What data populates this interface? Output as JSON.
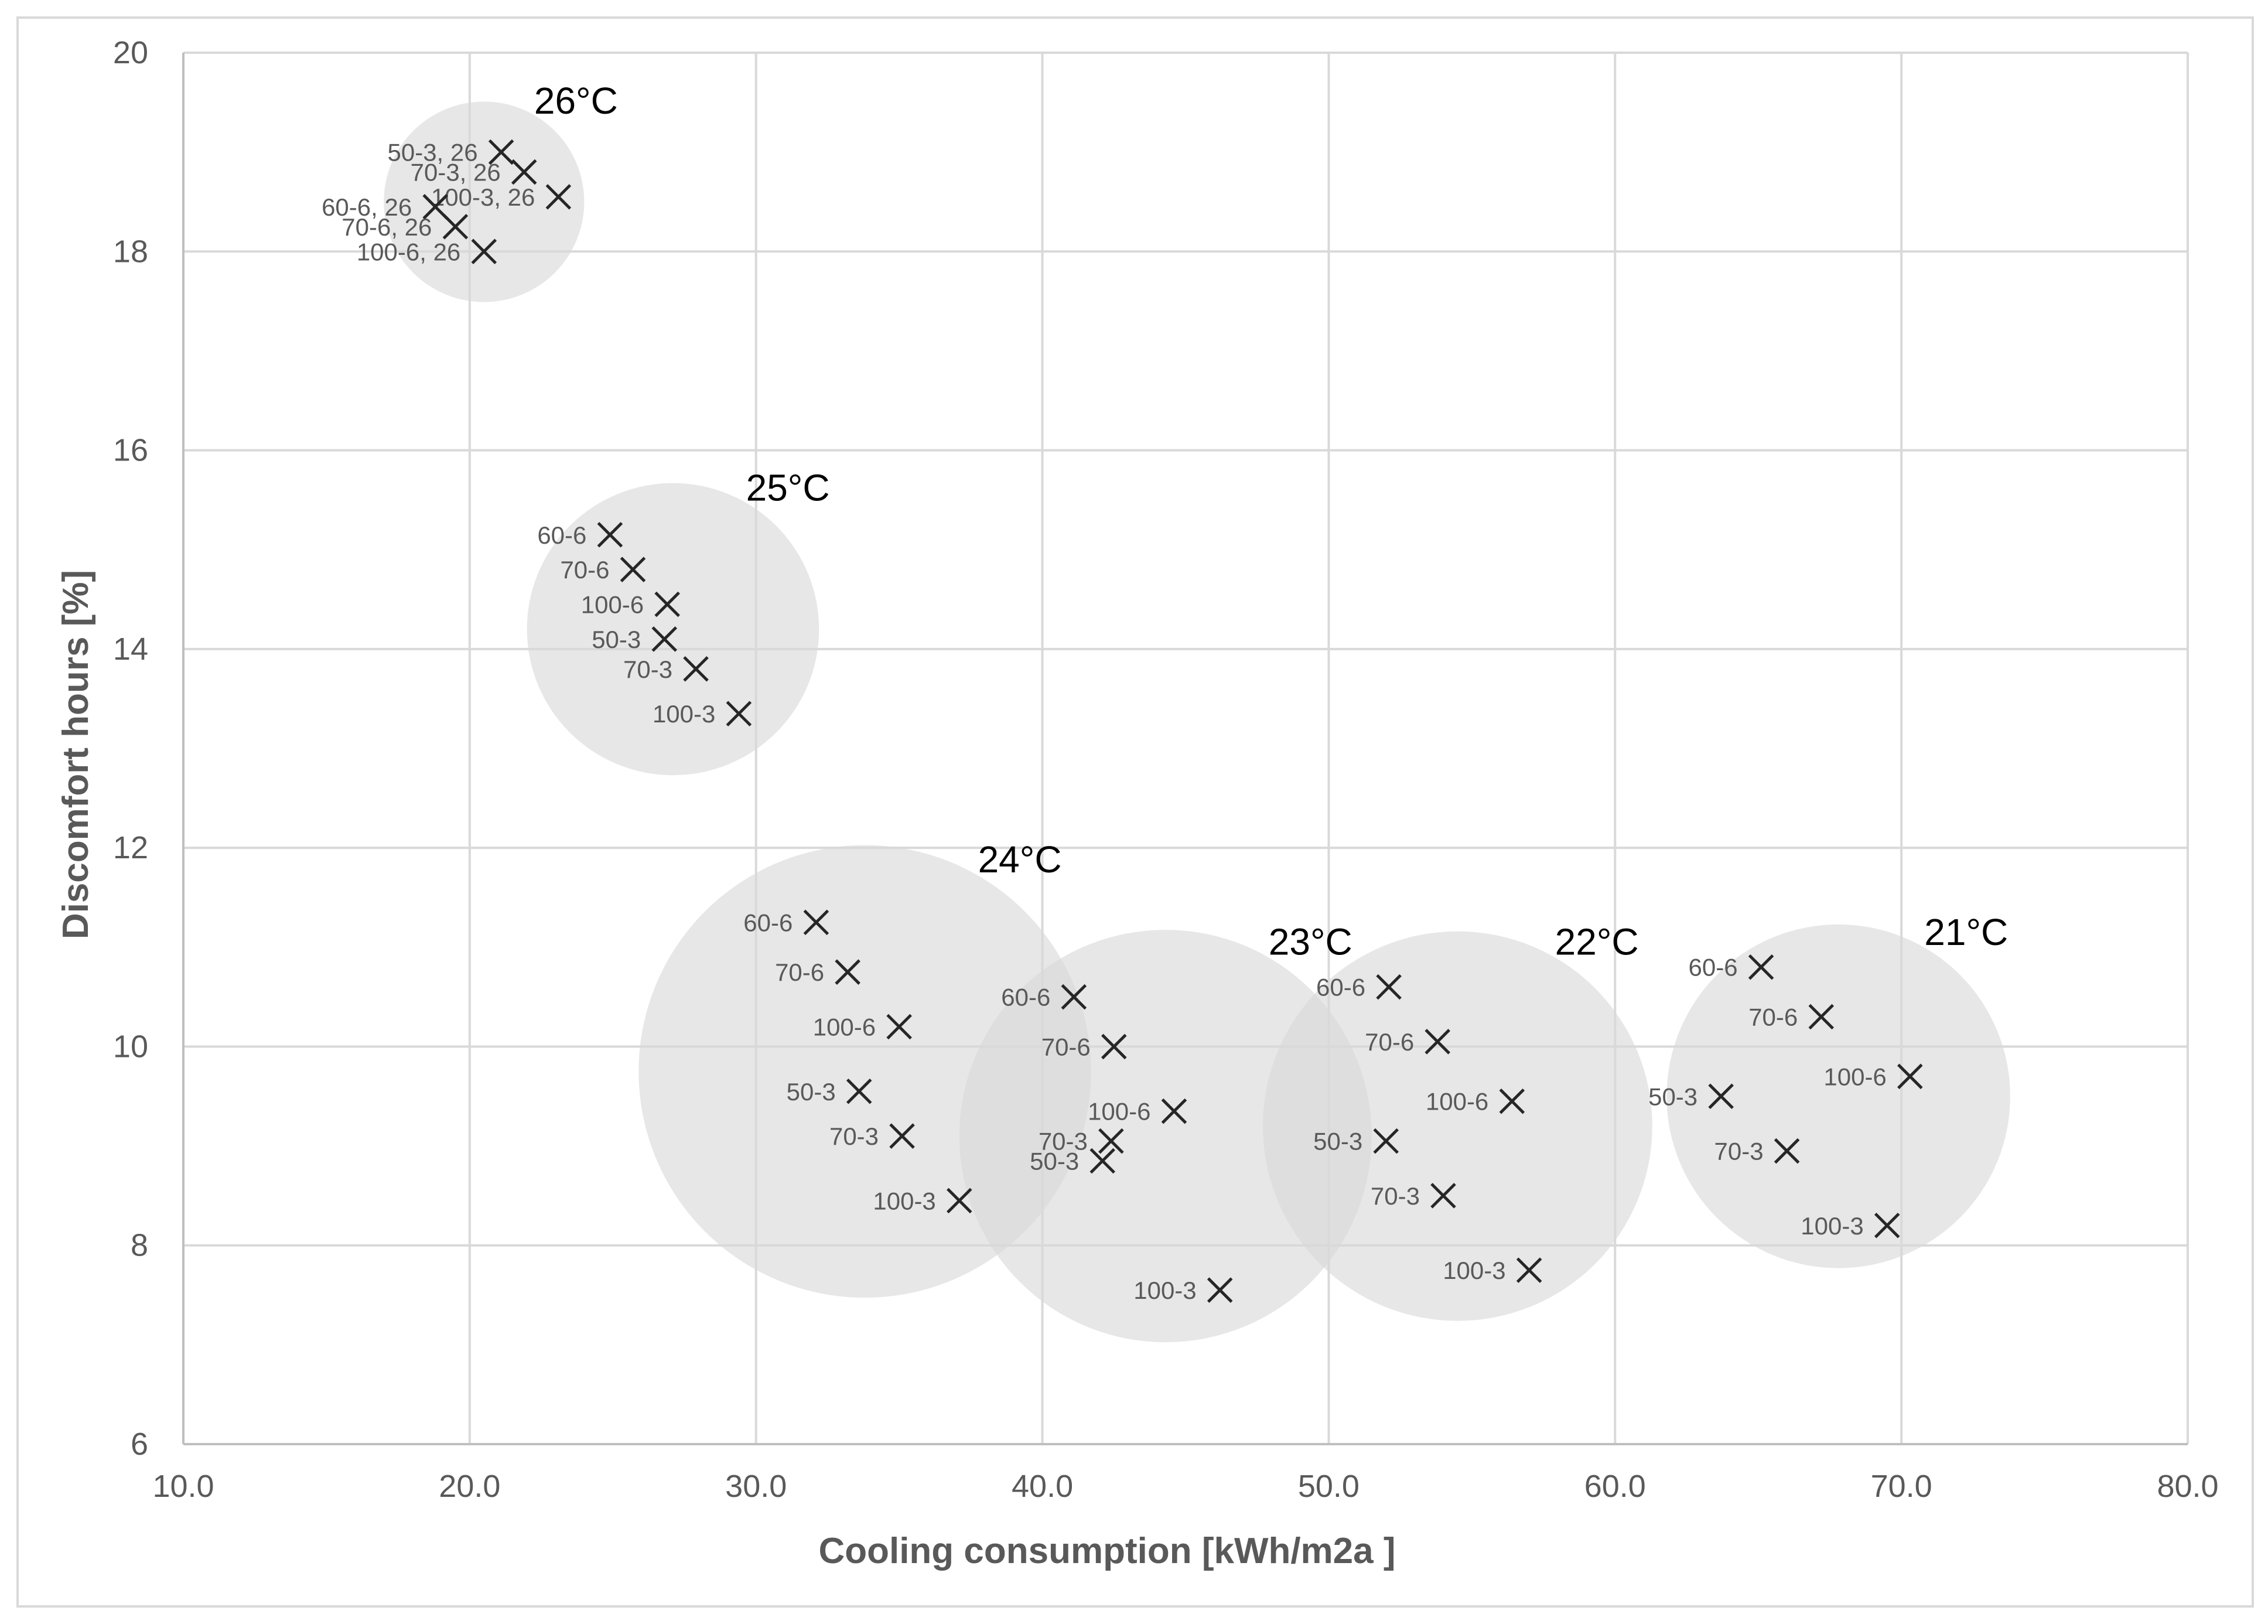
{
  "chart_data": {
    "type": "scatter",
    "title": "",
    "xlabel": "Cooling consumption [kWh/m2a ]",
    "ylabel": "Discomfort hours [%]",
    "xlim": [
      10.0,
      80.0
    ],
    "ylim": [
      6,
      20
    ],
    "x_ticks": [
      "10.0",
      "20.0",
      "30.0",
      "40.0",
      "50.0",
      "60.0",
      "70.0",
      "80.0"
    ],
    "y_ticks": [
      "6",
      "8",
      "10",
      "12",
      "14",
      "16",
      "18",
      "20"
    ],
    "grid": true,
    "marker": "x",
    "marker_color": "#262626",
    "bubble_color": "#d9d9d9",
    "groups": [
      {
        "label": "26°C",
        "bubble_center": [
          20.5,
          18.5
        ],
        "bubble_radius_x": 3.5,
        "points": [
          {
            "label": "50-3, 26",
            "x": 21.1,
            "y": 19.0
          },
          {
            "label": "70-3, 26",
            "x": 21.9,
            "y": 18.8
          },
          {
            "label": "100-3, 26",
            "x": 23.1,
            "y": 18.55
          },
          {
            "label": "60-6, 26",
            "x": 18.8,
            "y": 18.45
          },
          {
            "label": "70-6, 26",
            "x": 19.5,
            "y": 18.25
          },
          {
            "label": "100-6, 26",
            "x": 20.5,
            "y": 18.0
          }
        ]
      },
      {
        "label": "25°C",
        "bubble_center": [
          27.1,
          14.2
        ],
        "bubble_radius_x": 5.1,
        "points": [
          {
            "label": "60-6",
            "x": 24.9,
            "y": 15.15
          },
          {
            "label": "70-6",
            "x": 25.7,
            "y": 14.8
          },
          {
            "label": "100-6",
            "x": 26.9,
            "y": 14.45
          },
          {
            "label": "50-3",
            "x": 26.8,
            "y": 14.1
          },
          {
            "label": "70-3",
            "x": 27.9,
            "y": 13.8
          },
          {
            "label": "100-3",
            "x": 29.4,
            "y": 13.35
          }
        ]
      },
      {
        "label": "24°C",
        "bubble_center": [
          33.8,
          9.75
        ],
        "bubble_radius_x": 7.9,
        "points": [
          {
            "label": "60-6",
            "x": 32.1,
            "y": 11.25
          },
          {
            "label": "70-6",
            "x": 33.2,
            "y": 10.75
          },
          {
            "label": "100-6",
            "x": 35.0,
            "y": 10.2
          },
          {
            "label": "50-3",
            "x": 33.6,
            "y": 9.55
          },
          {
            "label": "70-3",
            "x": 35.1,
            "y": 9.1
          },
          {
            "label": "100-3",
            "x": 37.1,
            "y": 8.45
          }
        ]
      },
      {
        "label": "23°C",
        "bubble_center": [
          44.3,
          9.1
        ],
        "bubble_radius_x": 7.2,
        "points": [
          {
            "label": "60-6",
            "x": 41.1,
            "y": 10.5
          },
          {
            "label": "70-6",
            "x": 42.5,
            "y": 10.0
          },
          {
            "label": "100-6",
            "x": 44.6,
            "y": 9.35
          },
          {
            "label": "70-3",
            "x": 42.4,
            "y": 9.05
          },
          {
            "label": "50-3",
            "x": 42.1,
            "y": 8.85
          },
          {
            "label": "100-3",
            "x": 46.2,
            "y": 7.55
          }
        ]
      },
      {
        "label": "22°C",
        "bubble_center": [
          54.5,
          9.2
        ],
        "bubble_radius_x": 6.8,
        "points": [
          {
            "label": "60-6",
            "x": 52.1,
            "y": 10.6
          },
          {
            "label": "70-6",
            "x": 53.8,
            "y": 10.05
          },
          {
            "label": "100-6",
            "x": 56.4,
            "y": 9.45
          },
          {
            "label": "50-3",
            "x": 52.0,
            "y": 9.05
          },
          {
            "label": "70-3",
            "x": 54.0,
            "y": 8.5
          },
          {
            "label": "100-3",
            "x": 57.0,
            "y": 7.75
          }
        ]
      },
      {
        "label": "21°C",
        "bubble_center": [
          67.8,
          9.5
        ],
        "bubble_radius_x": 6.0,
        "points": [
          {
            "label": "60-6",
            "x": 65.1,
            "y": 10.8
          },
          {
            "label": "70-6",
            "x": 67.2,
            "y": 10.3
          },
          {
            "label": "100-6",
            "x": 70.3,
            "y": 9.7
          },
          {
            "label": "50-3",
            "x": 63.7,
            "y": 9.5
          },
          {
            "label": "70-3",
            "x": 66.0,
            "y": 8.95
          },
          {
            "label": "100-3",
            "x": 69.5,
            "y": 8.2
          }
        ]
      }
    ]
  }
}
